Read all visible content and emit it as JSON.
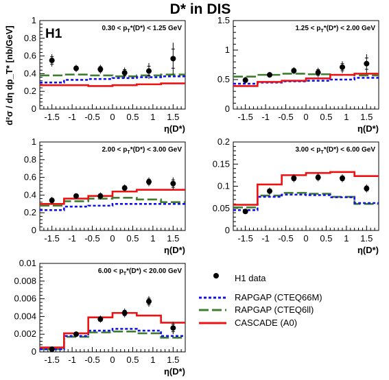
{
  "title": "D* in DIS",
  "collab": "H1",
  "ylabel": "d²σ / dη dp_T* [nb/GeV]",
  "xlabel": "η(D*)",
  "legend": {
    "data": "H1 data",
    "rapgap66m": "RAPGAP (CTEQ66M)",
    "rapgap6ll": "RAPGAP (CTEQ6ll)",
    "cascade": "CASCADE (A0)"
  },
  "colors": {
    "data": "#000000",
    "rapgap66m": "#1010ee",
    "rapgap6ll": "#3e7d2e",
    "cascade": "#ee1111"
  },
  "chart_data": [
    {
      "type": "line",
      "label": "0.30 < p_T*(D*) < 1.25 GeV",
      "xlim": [
        -1.8,
        1.8
      ],
      "ylim": [
        0,
        1
      ],
      "yticks": [
        "0",
        "0.2",
        "0.4",
        "0.6",
        "0.8",
        "1"
      ],
      "xticks": [
        "-1.5",
        "-1",
        "-0.5",
        "0",
        "0.5",
        "1",
        "1.5"
      ],
      "bin_edges": [
        -1.8,
        -1.2,
        -0.6,
        0.0,
        0.6,
        1.2,
        1.8
      ],
      "data_x": [
        -1.5,
        -0.9,
        -0.3,
        0.3,
        0.9,
        1.5
      ],
      "data_y": [
        0.55,
        0.46,
        0.45,
        0.41,
        0.43,
        0.57
      ],
      "data_err": [
        0.07,
        0.04,
        0.05,
        0.06,
        0.09,
        0.18
      ],
      "rapgap66m": [
        0.3,
        0.33,
        0.34,
        0.35,
        0.36,
        0.37
      ],
      "rapgap6ll": [
        0.38,
        0.39,
        0.38,
        0.37,
        0.38,
        0.39
      ],
      "cascade": [
        0.27,
        0.27,
        0.26,
        0.27,
        0.28,
        0.29
      ]
    },
    {
      "type": "line",
      "label": "1.25 < p_T*(D*) < 2.00 GeV",
      "xlim": [
        -1.8,
        1.8
      ],
      "ylim": [
        0,
        1.5
      ],
      "yticks": [
        "0",
        "0.5",
        "1",
        "1.5"
      ],
      "xticks": [
        "-1.5",
        "-1",
        "-0.5",
        "0",
        "0.5",
        "1",
        "1.5"
      ],
      "bin_edges": [
        -1.8,
        -1.2,
        -0.6,
        0.0,
        0.6,
        1.2,
        1.8
      ],
      "data_x": [
        -1.5,
        -0.9,
        -0.3,
        0.3,
        0.9,
        1.5
      ],
      "data_y": [
        0.49,
        0.58,
        0.65,
        0.62,
        0.71,
        0.77
      ],
      "data_err": [
        0.06,
        0.05,
        0.06,
        0.08,
        0.1,
        0.16
      ],
      "rapgap66m": [
        0.43,
        0.45,
        0.47,
        0.48,
        0.5,
        0.53
      ],
      "rapgap6ll": [
        0.55,
        0.58,
        0.6,
        0.59,
        0.58,
        0.57
      ],
      "cascade": [
        0.39,
        0.46,
        0.48,
        0.52,
        0.58,
        0.6
      ]
    },
    {
      "type": "line",
      "label": "2.00 < p_T*(D*) < 3.00 GeV",
      "xlim": [
        -1.8,
        1.8
      ],
      "ylim": [
        0,
        1
      ],
      "yticks": [
        "0",
        "0.2",
        "0.4",
        "0.6",
        "0.8",
        "1"
      ],
      "xticks": [
        "-1.5",
        "-1",
        "-0.5",
        "0",
        "0.5",
        "1",
        "1.5"
      ],
      "bin_edges": [
        -1.8,
        -1.2,
        -0.6,
        0.0,
        0.6,
        1.2,
        1.8
      ],
      "data_x": [
        -1.5,
        -0.9,
        -0.3,
        0.3,
        0.9,
        1.5
      ],
      "data_y": [
        0.34,
        0.39,
        0.39,
        0.48,
        0.55,
        0.53
      ],
      "data_err": [
        0.04,
        0.03,
        0.04,
        0.04,
        0.05,
        0.07
      ],
      "rapgap66m": [
        0.23,
        0.27,
        0.28,
        0.3,
        0.3,
        0.3
      ],
      "rapgap6ll": [
        0.28,
        0.33,
        0.36,
        0.37,
        0.35,
        0.32
      ],
      "cascade": [
        0.3,
        0.36,
        0.39,
        0.44,
        0.46,
        0.46
      ]
    },
    {
      "type": "line",
      "label": "3.00 < p_T*(D*) < 6.00 GeV",
      "xlim": [
        -1.8,
        1.8
      ],
      "ylim": [
        0,
        0.2
      ],
      "yticks": [
        "0",
        "0.05",
        "0.1",
        "0.15",
        "0.2"
      ],
      "xticks": [
        "-1.5",
        "-1",
        "-0.5",
        "0",
        "0.5",
        "1",
        "1.5"
      ],
      "bin_edges": [
        -1.8,
        -1.2,
        -0.6,
        0.0,
        0.6,
        1.2,
        1.8
      ],
      "data_x": [
        -1.5,
        -0.9,
        -0.3,
        0.3,
        0.9,
        1.5
      ],
      "data_y": [
        0.043,
        0.089,
        0.118,
        0.12,
        0.118,
        0.095
      ],
      "data_err": [
        0.005,
        0.008,
        0.009,
        0.009,
        0.009,
        0.009
      ],
      "rapgap66m": [
        0.046,
        0.076,
        0.081,
        0.08,
        0.075,
        0.062
      ],
      "rapgap6ll": [
        0.052,
        0.079,
        0.085,
        0.083,
        0.076,
        0.06
      ],
      "cascade": [
        0.058,
        0.104,
        0.125,
        0.13,
        0.132,
        0.123
      ]
    },
    {
      "type": "line",
      "label": "6.00 < p_T*(D*) < 20.00 GeV",
      "xlim": [
        -1.8,
        1.8
      ],
      "ylim": [
        0,
        0.01
      ],
      "yticks": [
        "0",
        "0.002",
        "0.004",
        "0.006",
        "0.008",
        "0.01"
      ],
      "xticks": [
        "-1.5",
        "-1",
        "-0.5",
        "0",
        "0.5",
        "1",
        "1.5"
      ],
      "bin_edges": [
        -1.8,
        -1.2,
        -0.6,
        0.0,
        0.6,
        1.2,
        1.8
      ],
      "data_x": [
        -1.5,
        -0.9,
        -0.3,
        0.3,
        0.9,
        1.5
      ],
      "data_y": [
        0.0003,
        0.002,
        0.0037,
        0.0044,
        0.0057,
        0.0027
      ],
      "data_err": [
        0.0002,
        0.0003,
        0.0004,
        0.0005,
        0.0006,
        0.0007
      ],
      "rapgap66m": [
        0.0003,
        0.0018,
        0.0024,
        0.0026,
        0.0024,
        0.0018
      ],
      "rapgap6ll": [
        0.0003,
        0.0017,
        0.0022,
        0.0023,
        0.0021,
        0.0016
      ],
      "cascade": [
        0.0005,
        0.0021,
        0.0039,
        0.0044,
        0.0041,
        0.0033
      ]
    }
  ]
}
